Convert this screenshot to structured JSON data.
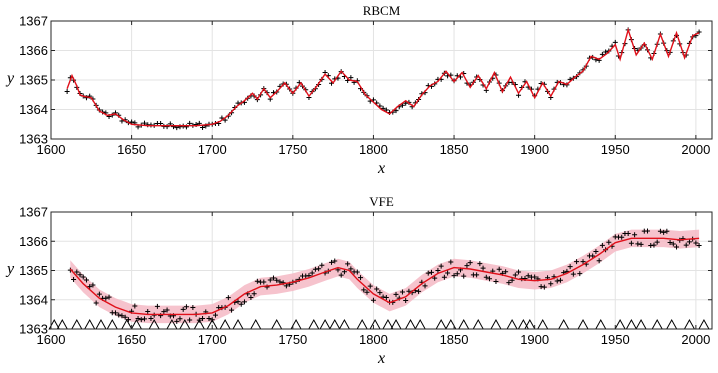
{
  "chart_data": [
    {
      "type": "line",
      "title": "RBCM",
      "xlabel": "x",
      "ylabel": "y",
      "xlim": [
        1600,
        2010
      ],
      "ylim": [
        1363,
        1367
      ],
      "xticks": [
        1600,
        1650,
        1700,
        1750,
        1800,
        1850,
        1900,
        1950,
        2000
      ],
      "yticks": [
        1363,
        1364,
        1365,
        1366,
        1367
      ],
      "grid": true,
      "colors": {
        "mean": "#e0101a",
        "band": "#f4b8c4",
        "points": "#000000"
      },
      "series": [
        {
          "role": "mean",
          "x": [
            1610,
            1613,
            1616,
            1618,
            1620,
            1625,
            1630,
            1635,
            1640,
            1645,
            1650,
            1660,
            1670,
            1680,
            1690,
            1700,
            1705,
            1710,
            1715,
            1720,
            1725,
            1728,
            1732,
            1736,
            1740,
            1745,
            1750,
            1755,
            1760,
            1765,
            1770,
            1775,
            1780,
            1785,
            1790,
            1795,
            1800,
            1805,
            1810,
            1815,
            1820,
            1825,
            1830,
            1835,
            1840,
            1845,
            1850,
            1855,
            1860,
            1865,
            1870,
            1875,
            1880,
            1885,
            1890,
            1895,
            1900,
            1905,
            1910,
            1915,
            1920,
            1925,
            1930,
            1935,
            1940,
            1945,
            1950,
            1953,
            1958,
            1963,
            1968,
            1973,
            1978,
            1983,
            1988,
            1993,
            1998,
            2002
          ],
          "y": [
            1364.7,
            1365.15,
            1364.8,
            1364.5,
            1364.45,
            1364.4,
            1363.95,
            1363.8,
            1363.85,
            1363.65,
            1363.5,
            1363.45,
            1363.45,
            1363.45,
            1363.45,
            1363.5,
            1363.6,
            1363.8,
            1364.1,
            1364.3,
            1364.55,
            1364.35,
            1364.7,
            1364.4,
            1364.6,
            1364.9,
            1364.55,
            1364.9,
            1364.45,
            1364.8,
            1365.2,
            1364.9,
            1365.3,
            1365.0,
            1364.95,
            1364.5,
            1364.25,
            1364.0,
            1363.85,
            1364.1,
            1364.3,
            1364.1,
            1364.5,
            1364.8,
            1364.95,
            1365.3,
            1364.95,
            1365.25,
            1364.75,
            1365.15,
            1364.7,
            1365.25,
            1364.6,
            1365.1,
            1364.55,
            1364.95,
            1364.4,
            1364.9,
            1364.45,
            1364.95,
            1364.85,
            1365.1,
            1365.3,
            1365.8,
            1365.7,
            1365.9,
            1366.2,
            1365.7,
            1366.7,
            1365.85,
            1366.25,
            1365.7,
            1366.55,
            1365.8,
            1366.6,
            1365.75,
            1366.5,
            1366.6
          ]
        }
      ]
    },
    {
      "type": "line",
      "title": "VFE",
      "xlabel": "x",
      "ylabel": "y",
      "xlim": [
        1600,
        2010
      ],
      "ylim": [
        1363,
        1367
      ],
      "xticks": [
        1600,
        1650,
        1700,
        1750,
        1800,
        1850,
        1900,
        1950,
        2000
      ],
      "yticks": [
        1363,
        1364,
        1365,
        1366,
        1367
      ],
      "grid": true,
      "colors": {
        "mean": "#e0101a",
        "band": "#f4b8c4",
        "points": "#000000",
        "inducing": "#000000"
      },
      "band_halfwidth": 0.3,
      "series": [
        {
          "role": "mean",
          "x": [
            1612,
            1620,
            1630,
            1640,
            1650,
            1660,
            1670,
            1680,
            1690,
            1700,
            1710,
            1720,
            1730,
            1740,
            1750,
            1760,
            1770,
            1778,
            1785,
            1790,
            1800,
            1810,
            1820,
            1830,
            1840,
            1850,
            1860,
            1870,
            1880,
            1890,
            1900,
            1910,
            1920,
            1930,
            1940,
            1950,
            1960,
            1970,
            1980,
            1990,
            2002
          ],
          "y": [
            1365.05,
            1364.55,
            1364.05,
            1363.75,
            1363.55,
            1363.5,
            1363.5,
            1363.5,
            1363.5,
            1363.55,
            1363.8,
            1364.2,
            1364.45,
            1364.5,
            1364.6,
            1364.75,
            1364.95,
            1365.1,
            1365.0,
            1364.7,
            1364.2,
            1363.9,
            1364.1,
            1364.55,
            1364.9,
            1365.1,
            1365.05,
            1364.95,
            1364.85,
            1364.7,
            1364.65,
            1364.7,
            1364.9,
            1365.2,
            1365.55,
            1365.95,
            1366.1,
            1366.1,
            1366.1,
            1366.05,
            1366.1
          ]
        }
      ],
      "inducing_x": [
        1602,
        1607,
        1616,
        1624,
        1631,
        1638,
        1647,
        1653,
        1664,
        1675,
        1683,
        1692,
        1700,
        1708,
        1716,
        1727,
        1740,
        1752,
        1763,
        1770,
        1776,
        1782,
        1793,
        1801,
        1809,
        1814,
        1823,
        1829,
        1842,
        1848,
        1856,
        1865,
        1876,
        1886,
        1893,
        1897,
        1905,
        1918,
        1930,
        1941,
        1953,
        1960,
        1966,
        1976,
        1985,
        1996,
        2005
      ]
    }
  ]
}
